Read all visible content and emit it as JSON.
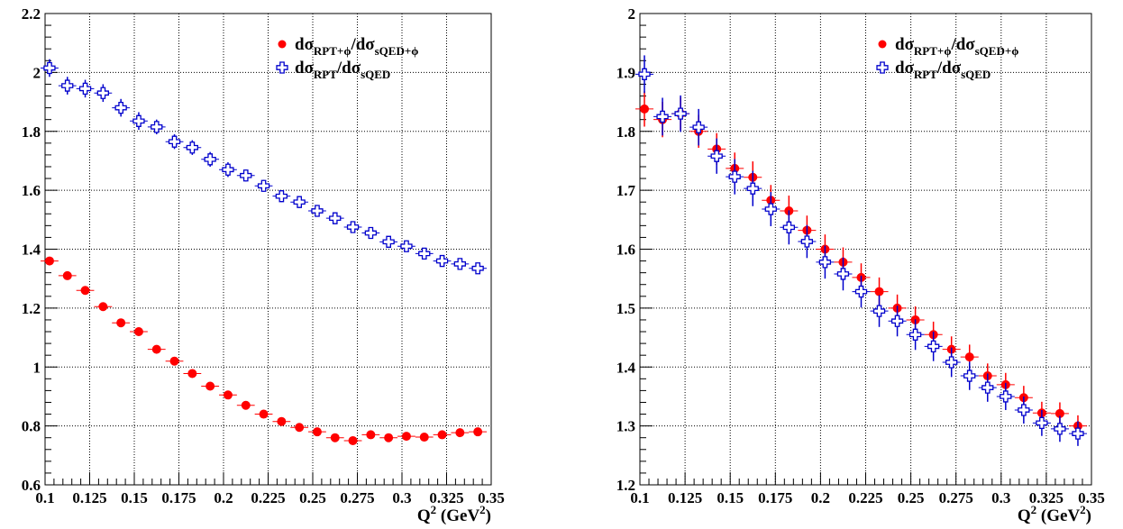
{
  "chart_data": [
    {
      "type": "scatter",
      "xlabel": {
        "base": "Q",
        "sup": "2",
        "rest": " (GeV",
        "sup2": "2",
        "close": ")"
      },
      "xlim": [
        0.1,
        0.35
      ],
      "ylim": [
        0.6,
        2.2
      ],
      "xticks": [
        0.1,
        0.125,
        0.15,
        0.175,
        0.2,
        0.225,
        0.25,
        0.275,
        0.3,
        0.325,
        0.35
      ],
      "xtick_labels": [
        "0.1",
        "0.125",
        "0.15",
        "0.175",
        "0.2",
        "0.225",
        "0.25",
        "0.275",
        "0.3",
        "0.325",
        "0.35"
      ],
      "yticks": [
        0.6,
        0.8,
        1.0,
        1.2,
        1.4,
        1.6,
        1.8,
        2.0,
        2.2
      ],
      "ytick_labels": [
        "0.6",
        "0.8",
        "1",
        "1.2",
        "1.4",
        "1.6",
        "1.8",
        "2",
        "2.2"
      ],
      "grid": true,
      "legend_position": "top-right",
      "x": [
        0.1025,
        0.1125,
        0.1225,
        0.1325,
        0.1425,
        0.1525,
        0.1625,
        0.1725,
        0.1825,
        0.1925,
        0.2025,
        0.2125,
        0.2225,
        0.2325,
        0.2425,
        0.2525,
        0.2625,
        0.2725,
        0.2825,
        0.2925,
        0.3025,
        0.3125,
        0.3225,
        0.3325,
        0.3425
      ],
      "series": [
        {
          "legend": {
            "main": "dσ",
            "sub": "RPT+ϕ",
            "mid": "/dσ",
            "sub2": "sQED+ϕ"
          },
          "marker": "filled-circle",
          "color": "#ff0000",
          "values": [
            1.36,
            1.31,
            1.26,
            1.205,
            1.15,
            1.12,
            1.06,
            1.02,
            0.978,
            0.935,
            0.905,
            0.87,
            0.84,
            0.815,
            0.795,
            0.78,
            0.76,
            0.75,
            0.77,
            0.76,
            0.765,
            0.762,
            0.77,
            0.777,
            0.78
          ],
          "yerr": [
            0.008,
            0.008,
            0.008,
            0.008,
            0.008,
            0.008,
            0.008,
            0.008,
            0.008,
            0.008,
            0.008,
            0.008,
            0.008,
            0.008,
            0.008,
            0.008,
            0.008,
            0.008,
            0.008,
            0.008,
            0.008,
            0.008,
            0.008,
            0.008,
            0.008
          ]
        },
        {
          "legend": {
            "main": "dσ",
            "sub": "RPT",
            "mid": "/dσ",
            "sub2": "sQED"
          },
          "marker": "open-cross",
          "color": "#0000cc",
          "values": [
            2.015,
            1.955,
            1.945,
            1.93,
            1.88,
            1.835,
            1.815,
            1.765,
            1.745,
            1.705,
            1.67,
            1.65,
            1.615,
            1.58,
            1.56,
            1.53,
            1.505,
            1.475,
            1.455,
            1.425,
            1.41,
            1.385,
            1.36,
            1.35,
            1.335
          ],
          "yerr": [
            0.03,
            0.03,
            0.03,
            0.03,
            0.03,
            0.03,
            0.025,
            0.025,
            0.025,
            0.025,
            0.025,
            0.02,
            0.02,
            0.02,
            0.02,
            0.02,
            0.015,
            0.015,
            0.015,
            0.015,
            0.012,
            0.012,
            0.012,
            0.012,
            0.012
          ]
        }
      ]
    },
    {
      "type": "scatter",
      "xlabel": {
        "base": "Q",
        "sup": "2",
        "rest": " (GeV",
        "sup2": "2",
        "close": ")"
      },
      "xlim": [
        0.1,
        0.35
      ],
      "ylim": [
        1.2,
        2.0
      ],
      "xticks": [
        0.1,
        0.125,
        0.15,
        0.175,
        0.2,
        0.225,
        0.25,
        0.275,
        0.3,
        0.325,
        0.35
      ],
      "xtick_labels": [
        "0.1",
        "0.125",
        "0.15",
        "0.175",
        "0.2",
        "0.225",
        "0.25",
        "0.275",
        "0.3",
        "0.325",
        "0.35"
      ],
      "yticks": [
        1.2,
        1.3,
        1.4,
        1.5,
        1.6,
        1.7,
        1.8,
        1.9,
        2.0
      ],
      "ytick_labels": [
        "1.2",
        "1.3",
        "1.4",
        "1.5",
        "1.6",
        "1.7",
        "1.8",
        "1.9",
        "2"
      ],
      "grid": true,
      "legend_position": "top-right",
      "x": [
        0.1025,
        0.1125,
        0.1225,
        0.1325,
        0.1425,
        0.1525,
        0.1625,
        0.1725,
        0.1825,
        0.1925,
        0.2025,
        0.2125,
        0.2225,
        0.2325,
        0.2425,
        0.2525,
        0.2625,
        0.2725,
        0.2825,
        0.2925,
        0.3025,
        0.3125,
        0.3225,
        0.3325,
        0.3425
      ],
      "series": [
        {
          "legend": {
            "main": "dσ",
            "sub": "RPT+ϕ",
            "mid": "/dσ",
            "sub2": "sQED+ϕ"
          },
          "marker": "filled-circle",
          "color": "#ff0000",
          "values": [
            1.838,
            1.82,
            1.83,
            1.8,
            1.77,
            1.737,
            1.722,
            1.683,
            1.665,
            1.632,
            1.6,
            1.578,
            1.552,
            1.528,
            1.5,
            1.48,
            1.455,
            1.43,
            1.417,
            1.385,
            1.37,
            1.348,
            1.322,
            1.321,
            1.3
          ],
          "yerr": [
            0.03,
            0.03,
            0.028,
            0.028,
            0.027,
            0.027,
            0.027,
            0.026,
            0.026,
            0.025,
            0.025,
            0.025,
            0.024,
            0.024,
            0.023,
            0.023,
            0.022,
            0.022,
            0.021,
            0.021,
            0.02,
            0.02,
            0.019,
            0.019,
            0.018
          ]
        },
        {
          "legend": {
            "main": "dσ",
            "sub": "RPT",
            "mid": "/dσ",
            "sub2": "sQED"
          },
          "marker": "open-cross",
          "color": "#0000cc",
          "values": [
            1.897,
            1.825,
            1.83,
            1.807,
            1.758,
            1.723,
            1.703,
            1.668,
            1.637,
            1.613,
            1.578,
            1.558,
            1.528,
            1.495,
            1.478,
            1.455,
            1.435,
            1.408,
            1.385,
            1.365,
            1.35,
            1.327,
            1.305,
            1.295,
            1.287
          ],
          "yerr": [
            0.032,
            0.032,
            0.031,
            0.031,
            0.03,
            0.03,
            0.03,
            0.029,
            0.029,
            0.028,
            0.028,
            0.028,
            0.027,
            0.027,
            0.026,
            0.026,
            0.025,
            0.025,
            0.024,
            0.024,
            0.023,
            0.023,
            0.022,
            0.022,
            0.021
          ]
        }
      ]
    }
  ]
}
